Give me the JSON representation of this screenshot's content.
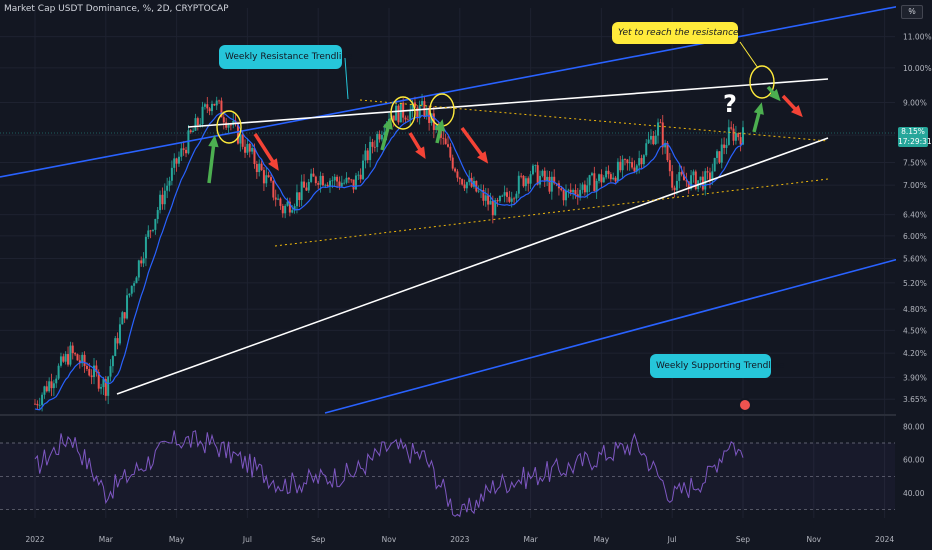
{
  "header": {
    "title": "Market Cap USDT Dominance, %, 2D, CRYPTOCAP",
    "scale_button": "%"
  },
  "annotations": {
    "resistance_label": "Weekly Resistance Trendline",
    "yet_label": "Yet to reach the resistance.",
    "support_label": "Weekly Supporting Trendline",
    "question": "?"
  },
  "price_tag": {
    "value": "8.15%",
    "countdown": "17:29:31"
  },
  "colors": {
    "background": "#131722",
    "up": "#26a69a",
    "down": "#ef5350",
    "ma": "#2962ff",
    "channel": "#2962ff",
    "trendline": "#ffffff",
    "dotted": "#f0b90b",
    "rsi": "#7e57c2",
    "arrow_up": "#4caf50",
    "arrow_down": "#f44336",
    "circle": "#ffeb3b"
  },
  "chart_data": [
    {
      "type": "candlestick",
      "title": "Market Cap USDT Dominance, %, 2D, CRYPTOCAP",
      "y_scale": "log",
      "ylim": [
        3.5,
        12.0
      ],
      "y_ticks": [
        "11.00%",
        "10.00%",
        "9.00%",
        "8.15%",
        "7.50%",
        "7.00%",
        "6.40%",
        "6.00%",
        "5.60%",
        "5.20%",
        "4.80%",
        "4.50%",
        "4.20%",
        "3.90%",
        "3.65%"
      ],
      "x_ticks": [
        "2022",
        "Mar",
        "May",
        "Jul",
        "Sep",
        "Nov",
        "2023",
        "Mar",
        "May",
        "Jul",
        "Sep",
        "Nov",
        "2024"
      ],
      "key_points": [
        {
          "x": "2022-01",
          "y": 3.6
        },
        {
          "x": "2022-02",
          "y": 4.2
        },
        {
          "x": "2022-03",
          "y": 3.8
        },
        {
          "x": "2022-05",
          "y": 7.5
        },
        {
          "x": "2022-06",
          "y": 9.1
        },
        {
          "x": "2022-08",
          "y": 6.5
        },
        {
          "x": "2022-09",
          "y": 7.2
        },
        {
          "x": "2022-10",
          "y": 7.0
        },
        {
          "x": "2022-11",
          "y": 8.7
        },
        {
          "x": "2022-12",
          "y": 8.8
        },
        {
          "x": "2023-01",
          "y": 7.2
        },
        {
          "x": "2023-02",
          "y": 6.5
        },
        {
          "x": "2023-03",
          "y": 7.3
        },
        {
          "x": "2023-04",
          "y": 6.8
        },
        {
          "x": "2023-06",
          "y": 7.5
        },
        {
          "x": "2023-06-20",
          "y": 8.4
        },
        {
          "x": "2023-07",
          "y": 7.1
        },
        {
          "x": "2023-08",
          "y": 7.1
        },
        {
          "x": "2023-08-20",
          "y": 8.2
        },
        {
          "x": "2023-09",
          "y": 8.15
        }
      ],
      "last_value": 8.15
    },
    {
      "type": "line",
      "name": "RSI",
      "ylim": [
        25,
        85
      ],
      "y_ticks": [
        "80.00",
        "60.00",
        "40.00"
      ],
      "levels": [
        70,
        50,
        30
      ],
      "key_points": [
        {
          "x": "2022-01",
          "y": 55
        },
        {
          "x": "2022-02",
          "y": 75
        },
        {
          "x": "2022-03",
          "y": 40
        },
        {
          "x": "2022-05",
          "y": 72
        },
        {
          "x": "2022-06",
          "y": 70
        },
        {
          "x": "2022-08",
          "y": 45
        },
        {
          "x": "2022-10",
          "y": 52
        },
        {
          "x": "2022-11",
          "y": 68
        },
        {
          "x": "2022-12",
          "y": 62
        },
        {
          "x": "2023-01",
          "y": 25
        },
        {
          "x": "2023-02",
          "y": 45
        },
        {
          "x": "2023-04",
          "y": 55
        },
        {
          "x": "2023-06",
          "y": 70
        },
        {
          "x": "2023-07",
          "y": 38
        },
        {
          "x": "2023-08",
          "y": 50
        },
        {
          "x": "2023-08-20",
          "y": 72
        },
        {
          "x": "2023-09",
          "y": 62
        }
      ]
    }
  ]
}
